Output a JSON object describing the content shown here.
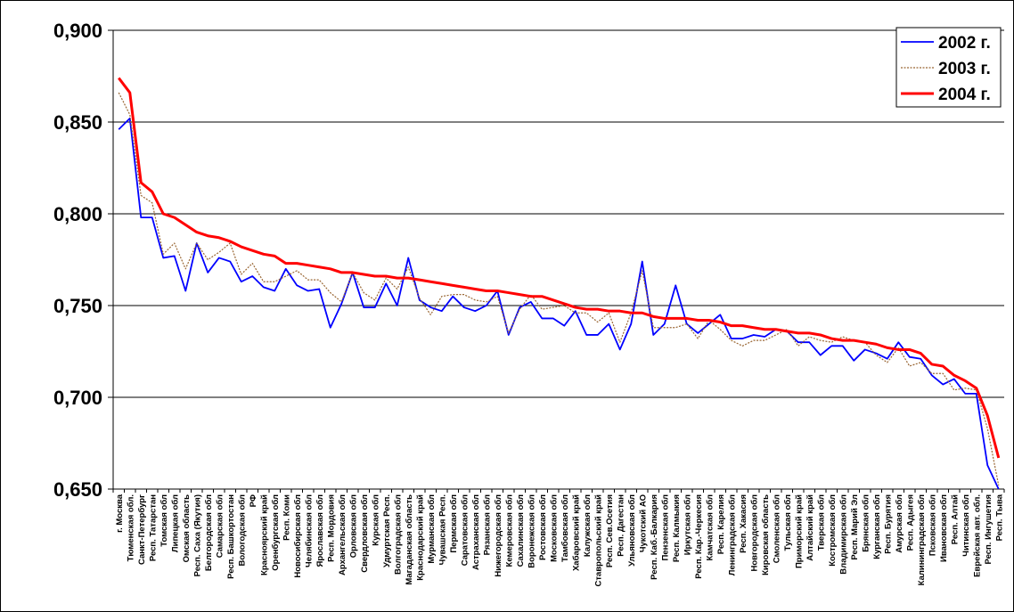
{
  "chart_data": {
    "type": "line",
    "title": "",
    "xlabel": "",
    "ylabel": "",
    "ylim": [
      0.65,
      0.9
    ],
    "yticks": [
      "0,650",
      "0,700",
      "0,750",
      "0,800",
      "0,850",
      "0,900"
    ],
    "ytick_values": [
      0.65,
      0.7,
      0.75,
      0.8,
      0.85,
      0.9
    ],
    "grid": "horizontal",
    "legend": "top-right",
    "categories": [
      "г. Москва",
      "Тюменская обл.",
      "Санкт-Петербург",
      "Респ. Татарстан",
      "Томская обл",
      "Липецкая обл",
      "Омская область",
      "Респ. Саха (Якутия)",
      "Белгородская обл",
      "Самарская обл",
      "Респ. Башкортостан",
      "Вологодская обл",
      "РФ",
      "Красноярский край",
      "Оренбургская обл",
      "Респ. Коми",
      "Новосибирская обл",
      "Челябинская обл",
      "Ярославская обл",
      "Респ. Мордовия",
      "Архангельская обл",
      "Орловская обл",
      "Свердловская обл",
      "Курская обл",
      "Удмуртская Респ.",
      "Волгоградская обл",
      "Магаданская область",
      "Краснодарский край",
      "Мурманская обл",
      "Чувашская Респ.",
      "Пермская обл",
      "Саратовская обл",
      "Астраханская обл",
      "Рязанская обл",
      "Нижегородская обл",
      "Кемеровская обл",
      "Сахалинская обл",
      "Воронежская обл",
      "Ростовская обл",
      "Московская обл",
      "Тамбовская обл",
      "Хабаровский край",
      "Калужская обл",
      "Ставропольский край",
      "Респ. Сев.Осетия",
      "Респ. Дагестан",
      "Ульяновская обл",
      "Чукотский АО",
      "Респ. Каб.-Балкария",
      "Пензенская обл",
      "Респ. Калмыкия",
      "Иркутская обл",
      "Респ. Кар.-Черкесия",
      "Камчатская обл",
      "Респ. Карелия",
      "Ленинградская обл",
      "Респ. Хакасия",
      "Новгородская обл",
      "Кировская область",
      "Смоленская обл",
      "Тульская обл",
      "Приморский край",
      "Алтайский край",
      "Тверская обл",
      "Костромская обл",
      "Владимирская обл",
      "Респ. Марий Эл",
      "Брянская обл",
      "Курганская обл",
      "Респ. Бурятия",
      "Амурская обл",
      "Респ. Адыгея",
      "Калининградская обл",
      "Псковская обл",
      "Ивановская обл",
      "Респ. Алтай",
      "Читинская обл",
      "Еврейская авт. обл.",
      "Респ. Ингушетия",
      "Респ. Тыва"
    ],
    "series": [
      {
        "name": "2002 г.",
        "color": "#0000ff",
        "width": 1.8,
        "values": [
          0.846,
          0.852,
          0.798,
          0.798,
          0.776,
          0.777,
          0.758,
          0.784,
          0.768,
          0.776,
          0.774,
          0.763,
          0.766,
          0.76,
          0.758,
          0.77,
          0.761,
          0.758,
          0.759,
          0.738,
          0.751,
          0.768,
          0.749,
          0.749,
          0.762,
          0.75,
          0.776,
          0.753,
          0.749,
          0.747,
          0.755,
          0.749,
          0.747,
          0.75,
          0.758,
          0.734,
          0.749,
          0.752,
          0.743,
          0.743,
          0.739,
          0.747,
          0.734,
          0.734,
          0.74,
          0.726,
          0.74,
          0.774,
          0.734,
          0.74,
          0.761,
          0.74,
          0.735,
          0.74,
          0.745,
          0.732,
          0.732,
          0.734,
          0.733,
          0.737,
          0.736,
          0.73,
          0.73,
          0.723,
          0.728,
          0.728,
          0.72,
          0.726,
          0.724,
          0.721,
          0.73,
          0.722,
          0.721,
          0.712,
          0.707,
          0.71,
          0.702,
          0.702,
          0.663,
          0.65
        ]
      },
      {
        "name": "2003 г.",
        "color": "#996633",
        "width": 1.2,
        "dash": "2 1.5",
        "values": [
          0.866,
          0.854,
          0.81,
          0.806,
          0.778,
          0.784,
          0.77,
          0.784,
          0.775,
          0.779,
          0.784,
          0.767,
          0.773,
          0.763,
          0.763,
          0.766,
          0.769,
          0.764,
          0.764,
          0.757,
          0.752,
          0.768,
          0.757,
          0.753,
          0.765,
          0.759,
          0.771,
          0.754,
          0.745,
          0.755,
          0.756,
          0.756,
          0.753,
          0.752,
          0.755,
          0.735,
          0.748,
          0.756,
          0.748,
          0.749,
          0.75,
          0.746,
          0.746,
          0.741,
          0.746,
          0.73,
          0.746,
          0.769,
          0.738,
          0.738,
          0.738,
          0.74,
          0.732,
          0.742,
          0.737,
          0.731,
          0.728,
          0.731,
          0.731,
          0.734,
          0.737,
          0.728,
          0.733,
          0.731,
          0.73,
          0.733,
          0.731,
          0.73,
          0.723,
          0.719,
          0.727,
          0.717,
          0.719,
          0.713,
          0.713,
          0.704,
          0.705,
          0.704,
          0.683,
          0.652
        ]
      },
      {
        "name": "2004 г.",
        "color": "#ff0000",
        "width": 3,
        "values": [
          0.874,
          0.866,
          0.817,
          0.812,
          0.8,
          0.798,
          0.794,
          0.79,
          0.788,
          0.787,
          0.785,
          0.782,
          0.78,
          0.778,
          0.777,
          0.773,
          0.773,
          0.772,
          0.771,
          0.77,
          0.768,
          0.768,
          0.767,
          0.766,
          0.766,
          0.765,
          0.765,
          0.764,
          0.763,
          0.762,
          0.761,
          0.76,
          0.759,
          0.758,
          0.758,
          0.757,
          0.756,
          0.755,
          0.755,
          0.753,
          0.751,
          0.749,
          0.748,
          0.748,
          0.747,
          0.747,
          0.746,
          0.746,
          0.744,
          0.743,
          0.743,
          0.743,
          0.742,
          0.742,
          0.741,
          0.739,
          0.739,
          0.738,
          0.737,
          0.737,
          0.736,
          0.735,
          0.735,
          0.734,
          0.732,
          0.731,
          0.731,
          0.73,
          0.729,
          0.727,
          0.726,
          0.726,
          0.724,
          0.718,
          0.717,
          0.712,
          0.709,
          0.705,
          0.69,
          0.667
        ]
      }
    ]
  }
}
